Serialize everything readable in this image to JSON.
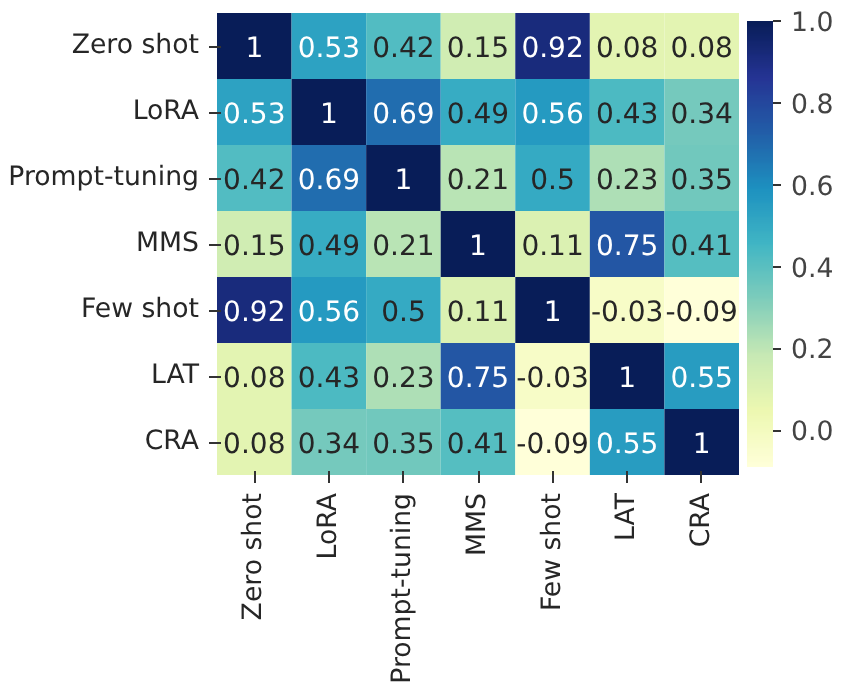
{
  "chart_data": {
    "type": "heatmap",
    "categories": [
      "Zero shot",
      "LoRA",
      "Prompt-tuning",
      "MMS",
      "Few shot",
      "LAT",
      "CRA"
    ],
    "y_categories": [
      "Zero shot",
      "LoRA",
      "Prompt-tuning",
      "MMS",
      "Few shot",
      "LAT",
      "CRA"
    ],
    "cells": [
      [
        1,
        0.53,
        0.42,
        0.15,
        0.92,
        0.08,
        0.08
      ],
      [
        0.53,
        1,
        0.69,
        0.49,
        0.56,
        0.43,
        0.34
      ],
      [
        0.42,
        0.69,
        1,
        0.21,
        0.5,
        0.23,
        0.35
      ],
      [
        0.15,
        0.49,
        0.21,
        1,
        0.11,
        0.75,
        0.41
      ],
      [
        0.92,
        0.56,
        0.5,
        0.11,
        1,
        -0.03,
        -0.09
      ],
      [
        0.08,
        0.43,
        0.23,
        0.75,
        -0.03,
        1,
        0.55
      ],
      [
        0.08,
        0.34,
        0.35,
        0.41,
        -0.09,
        0.55,
        1
      ]
    ],
    "data_labels": true,
    "clim": [
      -0.09,
      1
    ],
    "cticks": [
      {
        "value": 0,
        "label": "0.0"
      },
      {
        "value": 0.2,
        "label": "0.2"
      },
      {
        "value": 0.4,
        "label": "0.4"
      },
      {
        "value": 0.6,
        "label": "0.6"
      },
      {
        "value": 0.8,
        "label": "0.8"
      },
      {
        "value": 1,
        "label": "1.0"
      }
    ]
  }
}
